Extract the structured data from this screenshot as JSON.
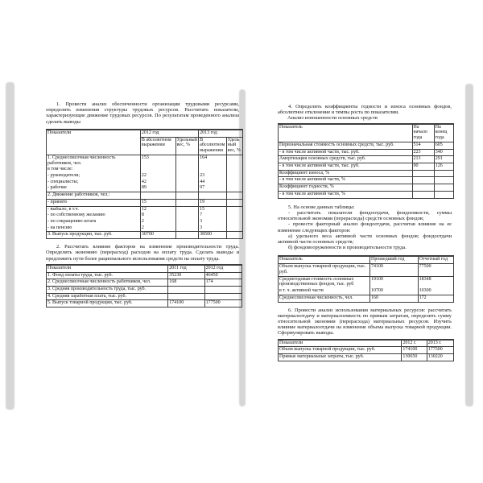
{
  "left_page": {
    "task1": "1. Провести анализ обеспеченности организации трудовыми ресурсами, определить изменения структуры трудовых ресурсов. Рассчитать показатели, характеризующие движение трудовых ресурсов. По результатам проведенного анализа сделать выводы",
    "table1": {
      "widths": [
        115,
        43,
        28,
        34,
        19
      ],
      "head": [
        [
          {
            "t": "Показатели",
            "rs": 2
          },
          {
            "t": "2012 год",
            "cs": 2
          },
          {
            "t": "2013 год",
            "cs": 2
          }
        ],
        [
          {
            "t": "В абсолютном выражении"
          },
          {
            "t": "Удельный вес, %"
          },
          {
            "t": "В абсолютном выражении"
          },
          {
            "t": "Удельный вес, %"
          }
        ]
      ],
      "rows": [
        {
          "cells": [
            "1. Среднесписочная численность работников, чел.",
            "153",
            "",
            "164",
            ""
          ]
        },
        {
          "cells": [
            "в том числе:",
            "",
            "",
            "",
            ""
          ],
          "nosep": true
        },
        {
          "cells": [
            "- руководители;",
            "22",
            "",
            "23",
            ""
          ],
          "nosep": true
        },
        {
          "cells": [
            "- специалисты;",
            "42",
            "",
            "44",
            ""
          ],
          "nosep": true
        },
        {
          "cells": [
            "- рабочие",
            "89",
            "",
            "97",
            ""
          ],
          "nosep": true
        },
        {
          "cells": [
            "2. Движение работников, чел.:",
            "",
            "",
            "",
            ""
          ]
        },
        {
          "cells": [
            "- принято",
            "15",
            "",
            "19",
            ""
          ]
        },
        {
          "cells": [
            "- выбыло, в т.ч.",
            "12",
            "",
            "15",
            ""
          ]
        },
        {
          "cells": [
            "- по собственному желанию",
            "8",
            "",
            "7",
            ""
          ],
          "nosep": true
        },
        {
          "cells": [
            "- по сокращению штата",
            "2",
            "",
            "3",
            ""
          ],
          "nosep": true
        },
        {
          "cells": [
            "- на пенсию",
            "2",
            "",
            "3",
            ""
          ],
          "nosep": true
        },
        {
          "cells": [
            "3. Выпуск продукции, тыс. руб.",
            "30700",
            "",
            "38500",
            ""
          ]
        }
      ]
    },
    "task2": "2. Рассчитать влияние факторов на изменение производительности труда. Определить экономию (перерасход) расходов на оплату труда. Сделать выводы и предложить пути более рационального использования средств на оплату труда.",
    "table2": {
      "widths": [
        150,
        45,
        45
      ],
      "head": [
        [
          {
            "t": "Показатели"
          },
          {
            "t": "2011 год"
          },
          {
            "t": "2012 год"
          }
        ]
      ],
      "rows": [
        {
          "cells": [
            "1. Фонд оплаты труда, тыс. руб.",
            "35230",
            "46450"
          ]
        },
        {
          "cells": [
            "2. Среднесписочная численность работников, чел.",
            "168",
            "174"
          ]
        },
        {
          "cells": [
            "3. Средняя производительность труда, тыс. руб.",
            "",
            ""
          ]
        },
        {
          "cells": [
            "4. Средняя заработная плата, тыс. руб.",
            "",
            ""
          ]
        },
        {
          "cells": [
            "5. Выпуск товарной продукции, тыс. руб.",
            "174100",
            "177500"
          ]
        }
      ]
    }
  },
  "right_page": {
    "task4": "4. Определить коэффициенты годности и износа основных фондов, абсолютное отклонение и темпы роста по показателям.",
    "table4_caption": "Анализ изношенности основных средств",
    "table4": {
      "widths": [
        165,
        27,
        23
      ],
      "head": [
        [
          {
            "t": "Показатель"
          },
          {
            "t": "На начало года"
          },
          {
            "t": "На конец года"
          }
        ]
      ],
      "rows": [
        {
          "cells": [
            "Первоначальная стоимость основных средств, тыс. руб.",
            "514",
            "605"
          ]
        },
        {
          "cells": [
            "- в том числе активной части, тыс. руб.",
            "223",
            "340"
          ]
        },
        {
          "cells": [
            "Амортизация основных средств, тыс. руб.",
            "213",
            "291"
          ]
        },
        {
          "cells": [
            "- в том числе активной части, тыс. руб.",
            "90",
            "126"
          ]
        },
        {
          "cells": [
            "Коэффициент износа, %",
            "",
            ""
          ]
        },
        {
          "cells": [
            "- в том числе активной части, %",
            "",
            ""
          ]
        },
        {
          "cells": [
            "Коэффициент годности, %",
            "",
            ""
          ]
        },
        {
          "cells": [
            "- в том числе активной части, %",
            "",
            ""
          ]
        }
      ]
    },
    "task5_intro": "5. На основе данных таблицы:",
    "task5_items": [
      "- рассчитать показатели фондоотдачи, фондоемкости, суммы относительной экономии (перерасхода) средств основных фондов;",
      "- провести факторный анализ фондоотдачи, рассчитав влияние на ее изменение следующих факторов:",
      "а) удельного веса активной части основных фондов; фондоотдачи активной части основных средств;",
      "б) фондовооруженности и производительности труда."
    ],
    "table5": {
      "widths": [
        113,
        59,
        43
      ],
      "head": [
        [
          {
            "t": "Показатель"
          },
          {
            "t": "Прошедший год"
          },
          {
            "t": "Отчетный год"
          }
        ]
      ],
      "rows": [
        {
          "cells": [
            "Объем выпуска товарной продукции, тыс. руб.",
            "74100",
            "77500"
          ]
        },
        {
          "cells": [
            "Среднегодовая стоимость основных производственных фондов, тыс. руб",
            "19100",
            "18348"
          ]
        },
        {
          "cells": [
            "в т. ч. активной части",
            "10700",
            "10300"
          ],
          "nosep": true
        },
        {
          "cells": [
            "Среднесписочная численность, чел.",
            "160",
            "172"
          ]
        }
      ]
    },
    "task6": "6. Провести анализ использования материальных ресурсов: рассчитать материалоотдачу и материалоемкость по прямым затратам, определить сумму относительной экономии (перерасхода) материальных ресурсов. Изучить влияние материалоотдачи на изменение объема выпуска товарной продукции. Сформулировать выводы.",
    "table6": {
      "widths": [
        152,
        31,
        32
      ],
      "head": [
        [
          {
            "t": "Показатели"
          },
          {
            "t": "2012 г."
          },
          {
            "t": "2013 г."
          }
        ]
      ],
      "rows": [
        {
          "cells": [
            "Объем выпуска товарной продукции, тыс. руб.",
            "174100",
            "177500"
          ]
        },
        {
          "cells": [
            "Прямые материальные затраты, тыс. руб.",
            "130650",
            "130220"
          ]
        }
      ]
    }
  }
}
